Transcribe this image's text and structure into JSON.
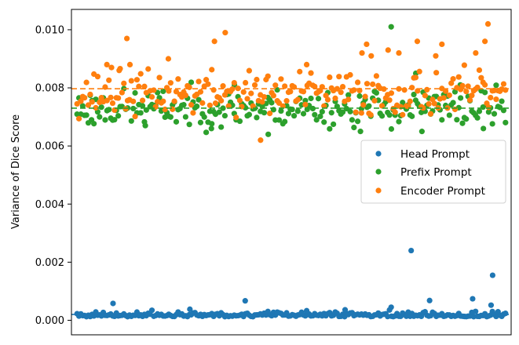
{
  "chart_data": {
    "type": "scatter",
    "ylabel": "Variance of Dice Score",
    "ylim": [
      -0.0005,
      0.0107
    ],
    "yticks": [
      "0.000",
      "0.002",
      "0.004",
      "0.006",
      "0.008",
      "0.010"
    ],
    "xticks": [],
    "grid": false,
    "legend_placement": "center-right",
    "series": [
      {
        "name": "Head Prompt",
        "color": "#1f77b4",
        "mean_line": 0.0002,
        "n": 230,
        "base": 0.00015,
        "spread": 9e-05,
        "seed": 11,
        "outliers": [
          {
            "x": 24,
            "y": 0.00058
          },
          {
            "x": 74,
            "y": 0.00038
          },
          {
            "x": 110,
            "y": 0.00067
          },
          {
            "x": 150,
            "y": 0.00033
          },
          {
            "x": 175,
            "y": 0.00036
          },
          {
            "x": 205,
            "y": 0.00045
          },
          {
            "x": 218,
            "y": 0.0024
          },
          {
            "x": 230,
            "y": 0.00068
          },
          {
            "x": 258,
            "y": 0.00074
          },
          {
            "x": 270,
            "y": 0.00052
          },
          {
            "x": 271,
            "y": 0.00155
          }
        ]
      },
      {
        "name": "Prefix Prompt",
        "color": "#2ca02c",
        "mean_line": 0.0073,
        "n": 230,
        "base": 0.0073,
        "spread": 0.00032,
        "seed": 23,
        "outliers": [
          {
            "x": 10,
            "y": 0.0069
          },
          {
            "x": 45,
            "y": 0.0067
          },
          {
            "x": 88,
            "y": 0.0066
          },
          {
            "x": 103,
            "y": 0.0081
          },
          {
            "x": 125,
            "y": 0.0064
          },
          {
            "x": 185,
            "y": 0.0065
          },
          {
            "x": 205,
            "y": 0.0101
          },
          {
            "x": 221,
            "y": 0.0085
          },
          {
            "x": 225,
            "y": 0.0065
          },
          {
            "x": 250,
            "y": 0.0081
          },
          {
            "x": 265,
            "y": 0.0066
          }
        ]
      },
      {
        "name": "Encoder Prompt",
        "color": "#ff7f0e",
        "mean_line": 0.00797,
        "n": 230,
        "base": 0.0078,
        "spread": 0.00038,
        "seed": 37,
        "outliers": [
          {
            "x": 20,
            "y": 0.0088
          },
          {
            "x": 23,
            "y": 0.0087
          },
          {
            "x": 28,
            "y": 0.0086
          },
          {
            "x": 33,
            "y": 0.0097
          },
          {
            "x": 35,
            "y": 0.0088
          },
          {
            "x": 60,
            "y": 0.009
          },
          {
            "x": 90,
            "y": 0.0096
          },
          {
            "x": 97,
            "y": 0.0099
          },
          {
            "x": 120,
            "y": 0.0062
          },
          {
            "x": 150,
            "y": 0.0088
          },
          {
            "x": 186,
            "y": 0.0092
          },
          {
            "x": 189,
            "y": 0.0095
          },
          {
            "x": 192,
            "y": 0.0091
          },
          {
            "x": 203,
            "y": 0.0093
          },
          {
            "x": 210,
            "y": 0.0092
          },
          {
            "x": 222,
            "y": 0.0096
          },
          {
            "x": 234,
            "y": 0.0091
          },
          {
            "x": 238,
            "y": 0.0095
          },
          {
            "x": 260,
            "y": 0.0092
          },
          {
            "x": 266,
            "y": 0.0096
          },
          {
            "x": 268,
            "y": 0.0102
          }
        ]
      }
    ],
    "xlim": [
      0,
      280
    ]
  }
}
